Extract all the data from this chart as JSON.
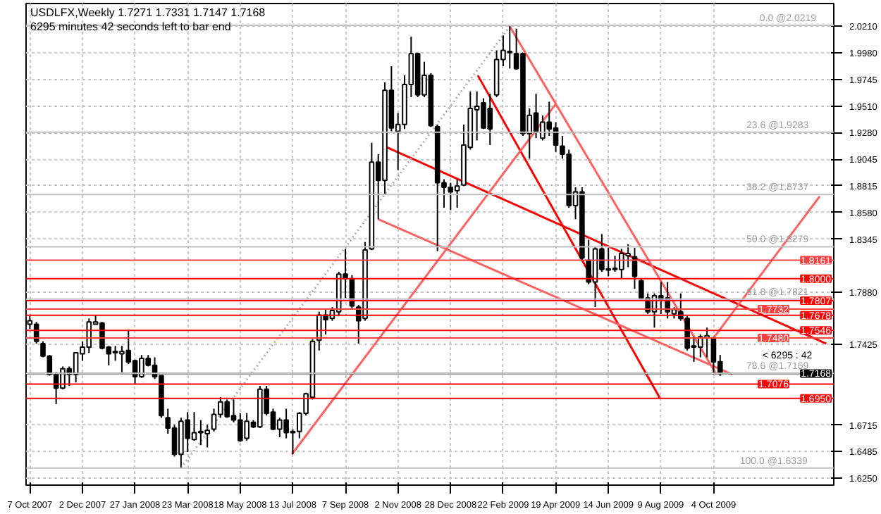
{
  "chart_data": {
    "type": "candlestick",
    "title": "USDLFX,Weekly  1.7271 1.7331 1.7147 1.7168",
    "subtitle": "6295 minutes 42 seconds left to bar end",
    "x": [
      "2007-10-07",
      "2007-10-14",
      "2007-10-21",
      "2007-10-28",
      "2007-11-04",
      "2007-11-11",
      "2007-11-18",
      "2007-11-25",
      "2007-12-02",
      "2007-12-09",
      "2007-12-16",
      "2007-12-23",
      "2007-12-30",
      "2008-01-06",
      "2008-01-13",
      "2008-01-20",
      "2008-01-27",
      "2008-02-03",
      "2008-02-10",
      "2008-02-17",
      "2008-02-24",
      "2008-03-02",
      "2008-03-09",
      "2008-03-16",
      "2008-03-23",
      "2008-03-30",
      "2008-04-06",
      "2008-04-13",
      "2008-04-20",
      "2008-04-27",
      "2008-05-04",
      "2008-05-11",
      "2008-05-18",
      "2008-05-25",
      "2008-06-01",
      "2008-06-08",
      "2008-06-15",
      "2008-06-22",
      "2008-06-29",
      "2008-07-06",
      "2008-07-13",
      "2008-07-20",
      "2008-07-27",
      "2008-08-03",
      "2008-08-10",
      "2008-08-17",
      "2008-08-24",
      "2008-08-31",
      "2008-09-07",
      "2008-09-14",
      "2008-09-21",
      "2008-09-28",
      "2008-10-05",
      "2008-10-12",
      "2008-10-19",
      "2008-10-26",
      "2008-11-02",
      "2008-11-09",
      "2008-11-16",
      "2008-11-23",
      "2008-11-30",
      "2008-12-07",
      "2008-12-14",
      "2008-12-21",
      "2008-12-28",
      "2009-01-04",
      "2009-01-11",
      "2009-01-18",
      "2009-01-25",
      "2009-02-01",
      "2009-02-08",
      "2009-02-15",
      "2009-02-22",
      "2009-03-01",
      "2009-03-08",
      "2009-03-15",
      "2009-03-22",
      "2009-03-29",
      "2009-04-05",
      "2009-04-12",
      "2009-04-19",
      "2009-04-26",
      "2009-05-03",
      "2009-05-10",
      "2009-05-17",
      "2009-05-24",
      "2009-05-31",
      "2009-06-07",
      "2009-06-14",
      "2009-06-21",
      "2009-06-28",
      "2009-07-05",
      "2009-07-12",
      "2009-07-19",
      "2009-07-26",
      "2009-08-02",
      "2009-08-09",
      "2009-08-16",
      "2009-08-23",
      "2009-08-30",
      "2009-09-06",
      "2009-09-13",
      "2009-09-20",
      "2009-09-27",
      "2009-10-04",
      "2009-10-11"
    ],
    "ohlc": [
      [
        1.76,
        1.767,
        1.756,
        1.763
      ],
      [
        1.76,
        1.762,
        1.743,
        1.745
      ],
      [
        1.743,
        1.745,
        1.731,
        1.732
      ],
      [
        1.732,
        1.733,
        1.715,
        1.716
      ],
      [
        1.716,
        1.718,
        1.69,
        1.704
      ],
      [
        1.704,
        1.723,
        1.703,
        1.721
      ],
      [
        1.721,
        1.723,
        1.706,
        1.716
      ],
      [
        1.716,
        1.735,
        1.709,
        1.735
      ],
      [
        1.734,
        1.745,
        1.728,
        1.74
      ],
      [
        1.74,
        1.765,
        1.735,
        1.762
      ],
      [
        1.76,
        1.768,
        1.76,
        1.762
      ],
      [
        1.761,
        1.762,
        1.738,
        1.739
      ],
      [
        1.74,
        1.741,
        1.724,
        1.734
      ],
      [
        1.735,
        1.741,
        1.728,
        1.736
      ],
      [
        1.734,
        1.741,
        1.718,
        1.736
      ],
      [
        1.737,
        1.755,
        1.725,
        1.727
      ],
      [
        1.728,
        1.729,
        1.707,
        1.714
      ],
      [
        1.714,
        1.733,
        1.713,
        1.73
      ],
      [
        1.73,
        1.733,
        1.723,
        1.724
      ],
      [
        1.724,
        1.731,
        1.712,
        1.714
      ],
      [
        1.715,
        1.715,
        1.678,
        1.68
      ],
      [
        1.678,
        1.686,
        1.664,
        1.669
      ],
      [
        1.669,
        1.672,
        1.644,
        1.646
      ],
      [
        1.646,
        1.678,
        1.634,
        1.675
      ],
      [
        1.676,
        1.683,
        1.648,
        1.66
      ],
      [
        1.659,
        1.683,
        1.658,
        1.665
      ],
      [
        1.665,
        1.676,
        1.654,
        1.666
      ],
      [
        1.664,
        1.672,
        1.652,
        1.667
      ],
      [
        1.668,
        1.686,
        1.666,
        1.681
      ],
      [
        1.681,
        1.696,
        1.678,
        1.692
      ],
      [
        1.692,
        1.694,
        1.678,
        1.679
      ],
      [
        1.68,
        1.694,
        1.674,
        1.676
      ],
      [
        1.676,
        1.682,
        1.657,
        1.658
      ],
      [
        1.66,
        1.682,
        1.658,
        1.675
      ],
      [
        1.674,
        1.676,
        1.669,
        1.67
      ],
      [
        1.67,
        1.706,
        1.669,
        1.703
      ],
      [
        1.703,
        1.706,
        1.68,
        1.682
      ],
      [
        1.683,
        1.686,
        1.667,
        1.668
      ],
      [
        1.668,
        1.678,
        1.661,
        1.676
      ],
      [
        1.676,
        1.686,
        1.66,
        1.665
      ],
      [
        1.666,
        1.668,
        1.646,
        1.665
      ],
      [
        1.666,
        1.683,
        1.66,
        1.682
      ],
      [
        1.682,
        1.7,
        1.68,
        1.699
      ],
      [
        1.696,
        1.747,
        1.694,
        1.745
      ],
      [
        1.746,
        1.771,
        1.737,
        1.768
      ],
      [
        1.768,
        1.773,
        1.751,
        1.764
      ],
      [
        1.765,
        1.775,
        1.763,
        1.772
      ],
      [
        1.771,
        1.806,
        1.767,
        1.804
      ],
      [
        1.804,
        1.826,
        1.783,
        1.8
      ],
      [
        1.8,
        1.803,
        1.774,
        1.776
      ],
      [
        1.775,
        1.777,
        1.743,
        1.763
      ],
      [
        1.765,
        1.832,
        1.763,
        1.825
      ],
      [
        1.826,
        1.919,
        1.825,
        1.902
      ],
      [
        1.902,
        1.909,
        1.852,
        1.886
      ],
      [
        1.886,
        1.972,
        1.874,
        1.965
      ],
      [
        1.965,
        1.986,
        1.929,
        1.932
      ],
      [
        1.929,
        1.945,
        1.895,
        1.935
      ],
      [
        1.935,
        1.978,
        1.931,
        1.97
      ],
      [
        1.97,
        2.012,
        1.959,
        1.997
      ],
      [
        1.997,
        1.998,
        1.959,
        1.961
      ],
      [
        1.961,
        1.99,
        1.959,
        1.978
      ],
      [
        1.978,
        1.98,
        1.933,
        1.934
      ],
      [
        1.933,
        1.935,
        1.824,
        1.884
      ],
      [
        1.884,
        1.887,
        1.862,
        1.88
      ],
      [
        1.88,
        1.884,
        1.86,
        1.876
      ],
      [
        1.877,
        1.887,
        1.862,
        1.881
      ],
      [
        1.882,
        1.935,
        1.881,
        1.917
      ],
      [
        1.915,
        1.964,
        1.913,
        1.949
      ],
      [
        1.948,
        1.964,
        1.921,
        1.951
      ],
      [
        1.954,
        1.958,
        1.931,
        1.932
      ],
      [
        1.949,
        1.962,
        1.917,
        1.931
      ],
      [
        1.961,
        2.0,
        1.959,
        1.992
      ],
      [
        1.992,
        2.013,
        1.986,
        2.0
      ],
      [
        1.998,
        2.021,
        1.984,
        1.999
      ],
      [
        1.997,
        2.019,
        1.983,
        1.984
      ],
      [
        1.997,
        1.998,
        1.925,
        1.927
      ],
      [
        1.927,
        1.949,
        1.905,
        1.943
      ],
      [
        1.945,
        1.962,
        1.923,
        1.929
      ],
      [
        1.923,
        1.943,
        1.921,
        1.937
      ],
      [
        1.937,
        1.955,
        1.925,
        1.931
      ],
      [
        1.932,
        1.937,
        1.911,
        1.917
      ],
      [
        1.916,
        1.925,
        1.905,
        1.909
      ],
      [
        1.909,
        1.913,
        1.862,
        1.864
      ],
      [
        1.864,
        1.88,
        1.852,
        1.876
      ],
      [
        1.876,
        1.88,
        1.816,
        1.818
      ],
      [
        1.816,
        1.834,
        1.795,
        1.797
      ],
      [
        1.797,
        1.828,
        1.775,
        1.826
      ],
      [
        1.826,
        1.839,
        1.806,
        1.808
      ],
      [
        1.8085,
        1.827,
        1.802,
        1.8075
      ],
      [
        1.808,
        1.82,
        1.806,
        1.809
      ],
      [
        1.808,
        1.826,
        1.8,
        1.822
      ],
      [
        1.82,
        1.83,
        1.81,
        1.822
      ],
      [
        1.819,
        1.827,
        1.791,
        1.802
      ],
      [
        1.798,
        1.8,
        1.781,
        1.783
      ],
      [
        1.783,
        1.787,
        1.769,
        1.771
      ],
      [
        1.771,
        1.787,
        1.757,
        1.785
      ],
      [
        1.785,
        1.797,
        1.769,
        1.781
      ],
      [
        1.783,
        1.797,
        1.765,
        1.771
      ],
      [
        1.769,
        1.775,
        1.765,
        1.773
      ],
      [
        1.771,
        1.787,
        1.763,
        1.765
      ],
      [
        1.765,
        1.767,
        1.737,
        1.739
      ],
      [
        1.74,
        1.749,
        1.727,
        1.741
      ],
      [
        1.74,
        1.751,
        1.731,
        1.749
      ],
      [
        1.748,
        1.757,
        1.731,
        1.75
      ],
      [
        1.748,
        1.749,
        1.716,
        1.727
      ],
      [
        1.7271,
        1.7331,
        1.7147,
        1.7168
      ]
    ],
    "series": [
      {
        "type": "line",
        "color": "#ff0000",
        "x": [
          "2008-10-21",
          "2010-02-01"
        ],
        "values": [
          1.915,
          1.743
        ]
      },
      {
        "type": "line",
        "color": "#ff0000",
        "x": [
          "2009-01-26",
          "2009-08-08"
        ],
        "values": [
          1.978,
          1.695
        ]
      },
      {
        "type": "line",
        "color": "#ff6060",
        "x": [
          "2009-03-01",
          "2009-10-07"
        ],
        "values": [
          2.021,
          1.716
        ]
      },
      {
        "type": "line",
        "color": "#ff6060",
        "x": [
          "2008-10-12",
          "2009-10-24"
        ],
        "values": [
          1.852,
          1.716
        ]
      },
      {
        "type": "line",
        "color": "#ff6060",
        "x": [
          "2008-07-12",
          "2009-04-19"
        ],
        "values": [
          1.646,
          1.953
        ]
      },
      {
        "type": "line",
        "color": "#ff6060",
        "x": [
          "2009-10-04",
          "2010-01-25"
        ],
        "values": [
          1.748,
          1.872
        ]
      },
      {
        "type": "line",
        "color": "#b0b0b0",
        "line_style": "dotted",
        "x": [
          "2008-03-16",
          "2009-03-01"
        ],
        "values": [
          1.634,
          2.021
        ]
      }
    ],
    "xlim": [
      "2007-10-03",
      "2010-02-09"
    ],
    "xticks": [
      {
        "value": "2007-10-07",
        "label": "7 Oct 2007"
      },
      {
        "value": "2007-12-02",
        "label": "2 Dec 2007"
      },
      {
        "value": "2008-01-27",
        "label": "27 Jan 2008"
      },
      {
        "value": "2008-03-23",
        "label": "23 Mar 2008"
      },
      {
        "value": "2008-05-18",
        "label": "18 May 2008"
      },
      {
        "value": "2008-07-13",
        "label": "13 Jul 2008"
      },
      {
        "value": "2008-09-07",
        "label": "7 Sep 2008"
      },
      {
        "value": "2008-11-02",
        "label": "2 Nov 2008"
      },
      {
        "value": "2008-12-28",
        "label": "28 Dec 2008"
      },
      {
        "value": "2009-02-22",
        "label": "22 Feb 2009"
      },
      {
        "value": "2009-04-19",
        "label": "19 Apr 2009"
      },
      {
        "value": "2009-06-14",
        "label": "14 Jun 2009"
      },
      {
        "value": "2009-08-09",
        "label": "9 Aug 2009"
      },
      {
        "value": "2009-10-04",
        "label": "4 Oct 2009"
      }
    ],
    "ylim": [
      1.619,
      2.041
    ],
    "yticks": [
      {
        "value": 2.021,
        "label": "2.0210"
      },
      {
        "value": 1.998,
        "label": "1.9980"
      },
      {
        "value": 1.9745,
        "label": "1.9745"
      },
      {
        "value": 1.951,
        "label": "1.9510"
      },
      {
        "value": 1.928,
        "label": "1.9280"
      },
      {
        "value": 1.9045,
        "label": "1.9045"
      },
      {
        "value": 1.8815,
        "label": "1.8815"
      },
      {
        "value": 1.858,
        "label": "1.8580"
      },
      {
        "value": 1.8345,
        "label": "1.8345"
      },
      {
        "value": 1.788,
        "label": "1.7880"
      },
      {
        "value": 1.7425,
        "label": "1.7425"
      },
      {
        "value": 1.6715,
        "label": "1.6715"
      },
      {
        "value": 1.6485,
        "label": "1.6485"
      },
      {
        "value": 1.625,
        "label": "1.6250"
      }
    ],
    "ref_lines": [
      {
        "axis": "y",
        "value": 1.8161,
        "label": "1.8161",
        "color": "#ff4040"
      },
      {
        "axis": "y",
        "value": 1.8,
        "label": "1.8000",
        "color": "#ff0000"
      },
      {
        "axis": "y",
        "value": 1.7807,
        "label": "1.7807",
        "color": "#ff0000"
      },
      {
        "axis": "y",
        "value": 1.7732,
        "label": "1.7732",
        "color": "#ff4040"
      },
      {
        "axis": "y",
        "value": 1.7678,
        "label": "1.7678",
        "color": "#ff0000"
      },
      {
        "axis": "y",
        "value": 1.7546,
        "label": "1.7546",
        "color": "#ff0000"
      },
      {
        "axis": "y",
        "value": 1.748,
        "label": "1.7480",
        "color": "#ff4040"
      },
      {
        "axis": "y",
        "value": 1.7168,
        "label": "1.7168",
        "color": "#000000"
      },
      {
        "axis": "y",
        "value": 1.7076,
        "label": "1.7076",
        "color": "#ff0000"
      },
      {
        "axis": "y",
        "value": 1.695,
        "label": "1.6950",
        "color": "#ff0000"
      },
      {
        "axis": "y",
        "value": 2.0219,
        "color": "#c0c0c0"
      },
      {
        "axis": "y",
        "value": 1.9283,
        "color": "#c0c0c0"
      },
      {
        "axis": "y",
        "value": 1.8737,
        "color": "#c0c0c0"
      },
      {
        "axis": "y",
        "value": 1.8279,
        "color": "#c0c0c0"
      },
      {
        "axis": "y",
        "value": 1.7821,
        "color": "#c0c0c0"
      },
      {
        "axis": "y",
        "value": 1.7169,
        "color": "#c0c0c0"
      },
      {
        "axis": "y",
        "value": 1.6339,
        "color": "#c0c0c0"
      }
    ],
    "annotations": [
      {
        "text": "0.0 @2.0219",
        "x": "2009-11-22",
        "y": 2.0219
      },
      {
        "text": "23.6 @1.9283",
        "x": "2009-11-08",
        "y": 1.9283
      },
      {
        "text": "38.2 @1.8737",
        "x": "2009-11-08",
        "y": 1.8737
      },
      {
        "text": "50.0 @1.8279",
        "x": "2009-11-08",
        "y": 1.8279
      },
      {
        "text": "61.8 @1.7821",
        "x": "2009-11-08",
        "y": 1.7821
      },
      {
        "text": "78.6 @1.7169",
        "x": "2009-11-08",
        "y": 1.7169
      },
      {
        "text": "100.0 @1.6339",
        "x": "2009-11-01",
        "y": 1.6339
      },
      "< 6295 : 42"
    ],
    "grid": true
  }
}
